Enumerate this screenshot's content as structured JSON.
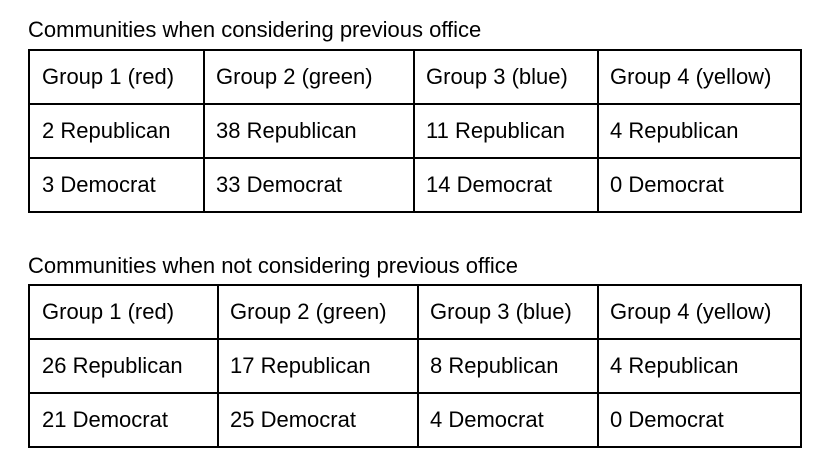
{
  "section_1": {
    "title": "Communities when considering previous office",
    "headers": [
      "Group 1 (red)",
      "Group 2 (green)",
      "Group 3 (blue)",
      "Group 4 (yellow)"
    ],
    "rows": [
      [
        "2 Republican",
        "38 Republican",
        "11 Republican",
        "4 Republican"
      ],
      [
        "3 Democrat",
        "33 Democrat",
        "14 Democrat",
        "0 Democrat"
      ]
    ]
  },
  "section_2": {
    "title": "Communities when not considering previous office",
    "headers": [
      "Group 1 (red)",
      "Group 2 (green)",
      "Group 3 (blue)",
      "Group 4 (yellow)"
    ],
    "rows": [
      [
        "26 Republican",
        "17 Republican",
        "8 Republican",
        "4 Republican"
      ],
      [
        "21 Democrat",
        "25 Democrat",
        "4 Democrat",
        "0 Democrat"
      ]
    ]
  }
}
